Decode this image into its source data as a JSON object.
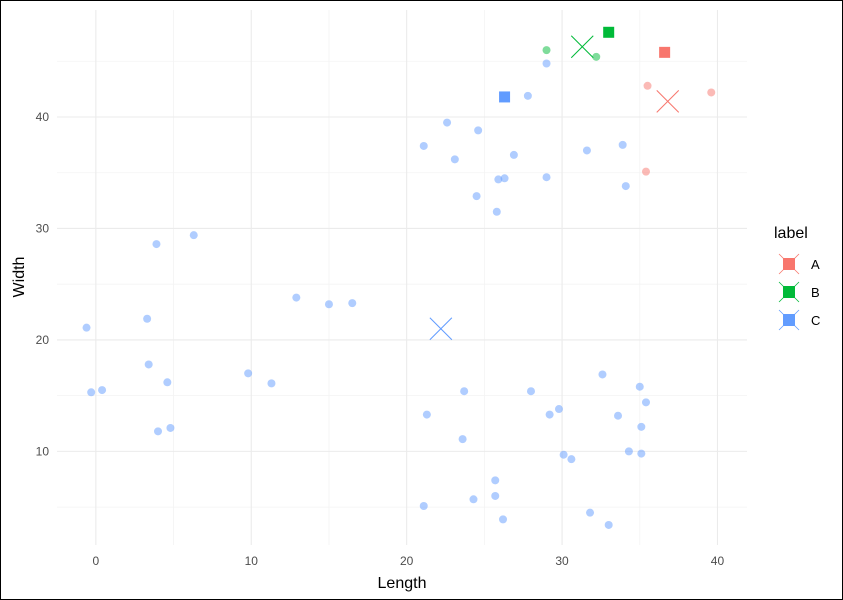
{
  "chart_data": {
    "type": "scatter",
    "xlabel": "Length",
    "ylabel": "Width",
    "xlim": [
      -2.5,
      41.9
    ],
    "ylim": [
      1.6,
      49.6
    ],
    "x_ticks": [
      0,
      10,
      20,
      30,
      40
    ],
    "y_ticks": [
      10,
      20,
      30,
      40
    ],
    "x_tick_labels": [
      "0",
      "10",
      "20",
      "30",
      "40"
    ],
    "y_tick_labels": [
      "10",
      "20",
      "30",
      "40"
    ],
    "grid": true,
    "legend": {
      "title": "label",
      "position": "right",
      "entries": [
        {
          "label": "A",
          "color": "#F8766D"
        },
        {
          "label": "B",
          "color": "#00BA38"
        },
        {
          "label": "C",
          "color": "#619CFF"
        }
      ]
    },
    "series": [
      {
        "label": "A",
        "color": "#F8766D",
        "points": [
          [
            35.5,
            42.8
          ],
          [
            39.6,
            42.2
          ],
          [
            35.4,
            35.1
          ]
        ],
        "center": [
          36.8,
          41.4
        ],
        "true_center": [
          36.6,
          45.8
        ]
      },
      {
        "label": "B",
        "color": "#00BA38",
        "points": [
          [
            29.0,
            46.0
          ],
          [
            32.2,
            45.4
          ]
        ],
        "center": [
          31.3,
          46.3
        ],
        "true_center": [
          33.0,
          47.6
        ]
      },
      {
        "label": "C",
        "color": "#619CFF",
        "points": [
          [
            29.0,
            44.8
          ],
          [
            27.8,
            41.9
          ],
          [
            22.6,
            39.5
          ],
          [
            24.6,
            38.8
          ],
          [
            21.1,
            37.4
          ],
          [
            23.1,
            36.2
          ],
          [
            26.9,
            36.6
          ],
          [
            31.6,
            37.0
          ],
          [
            33.9,
            37.5
          ],
          [
            25.9,
            34.4
          ],
          [
            26.3,
            34.5
          ],
          [
            29.0,
            34.6
          ],
          [
            34.1,
            33.8
          ],
          [
            24.5,
            32.9
          ],
          [
            25.8,
            31.5
          ],
          [
            3.9,
            28.6
          ],
          [
            6.3,
            29.4
          ],
          [
            12.9,
            23.8
          ],
          [
            15.0,
            23.2
          ],
          [
            16.5,
            23.3
          ],
          [
            -0.6,
            21.1
          ],
          [
            3.3,
            21.9
          ],
          [
            3.4,
            17.8
          ],
          [
            9.8,
            17.0
          ],
          [
            11.3,
            16.1
          ],
          [
            4.6,
            16.2
          ],
          [
            -0.3,
            15.3
          ],
          [
            0.4,
            15.5
          ],
          [
            4.0,
            11.8
          ],
          [
            4.8,
            12.1
          ],
          [
            23.7,
            15.4
          ],
          [
            21.3,
            13.3
          ],
          [
            23.6,
            11.1
          ],
          [
            28.0,
            15.4
          ],
          [
            29.2,
            13.3
          ],
          [
            29.8,
            13.8
          ],
          [
            32.6,
            16.9
          ],
          [
            35.0,
            15.8
          ],
          [
            35.4,
            14.4
          ],
          [
            33.6,
            13.2
          ],
          [
            35.1,
            12.2
          ],
          [
            30.1,
            9.7
          ],
          [
            30.6,
            9.3
          ],
          [
            34.3,
            10.0
          ],
          [
            35.1,
            9.8
          ],
          [
            25.7,
            7.4
          ],
          [
            25.7,
            6.0
          ],
          [
            24.3,
            5.7
          ],
          [
            21.1,
            5.1
          ],
          [
            26.2,
            3.9
          ],
          [
            31.8,
            4.5
          ],
          [
            33.0,
            3.4
          ]
        ],
        "center": [
          22.2,
          21.0
        ],
        "true_center": [
          26.3,
          41.8
        ]
      }
    ]
  }
}
